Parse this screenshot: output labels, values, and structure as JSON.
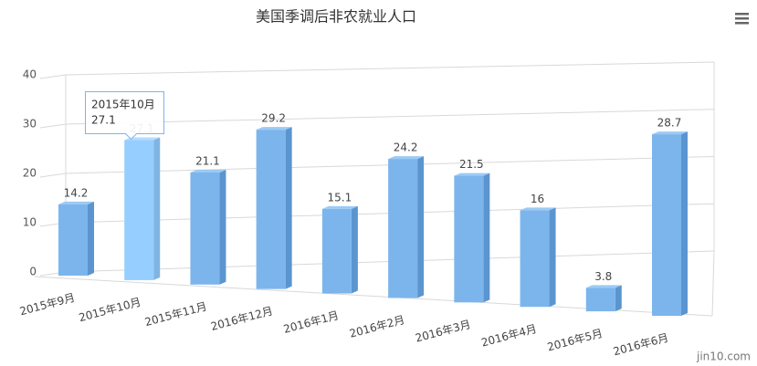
{
  "chart_data": {
    "type": "bar3d",
    "title": "美国季调后非农就业人口",
    "categories": [
      "2015年9月",
      "2015年10月",
      "2015年11月",
      "2016年12月",
      "2016年1月",
      "2016年2月",
      "2016年3月",
      "2016年4月",
      "2016年5月",
      "2016年6月"
    ],
    "values": [
      14.2,
      27.1,
      21.1,
      29.2,
      15.1,
      24.2,
      21.5,
      16,
      3.8,
      28.7
    ],
    "color": "#7cb5ec",
    "ylim": [
      0,
      40
    ],
    "yticks": [
      0,
      10,
      20,
      30,
      40
    ],
    "grid": true,
    "watermark": "jin10.com"
  }
}
